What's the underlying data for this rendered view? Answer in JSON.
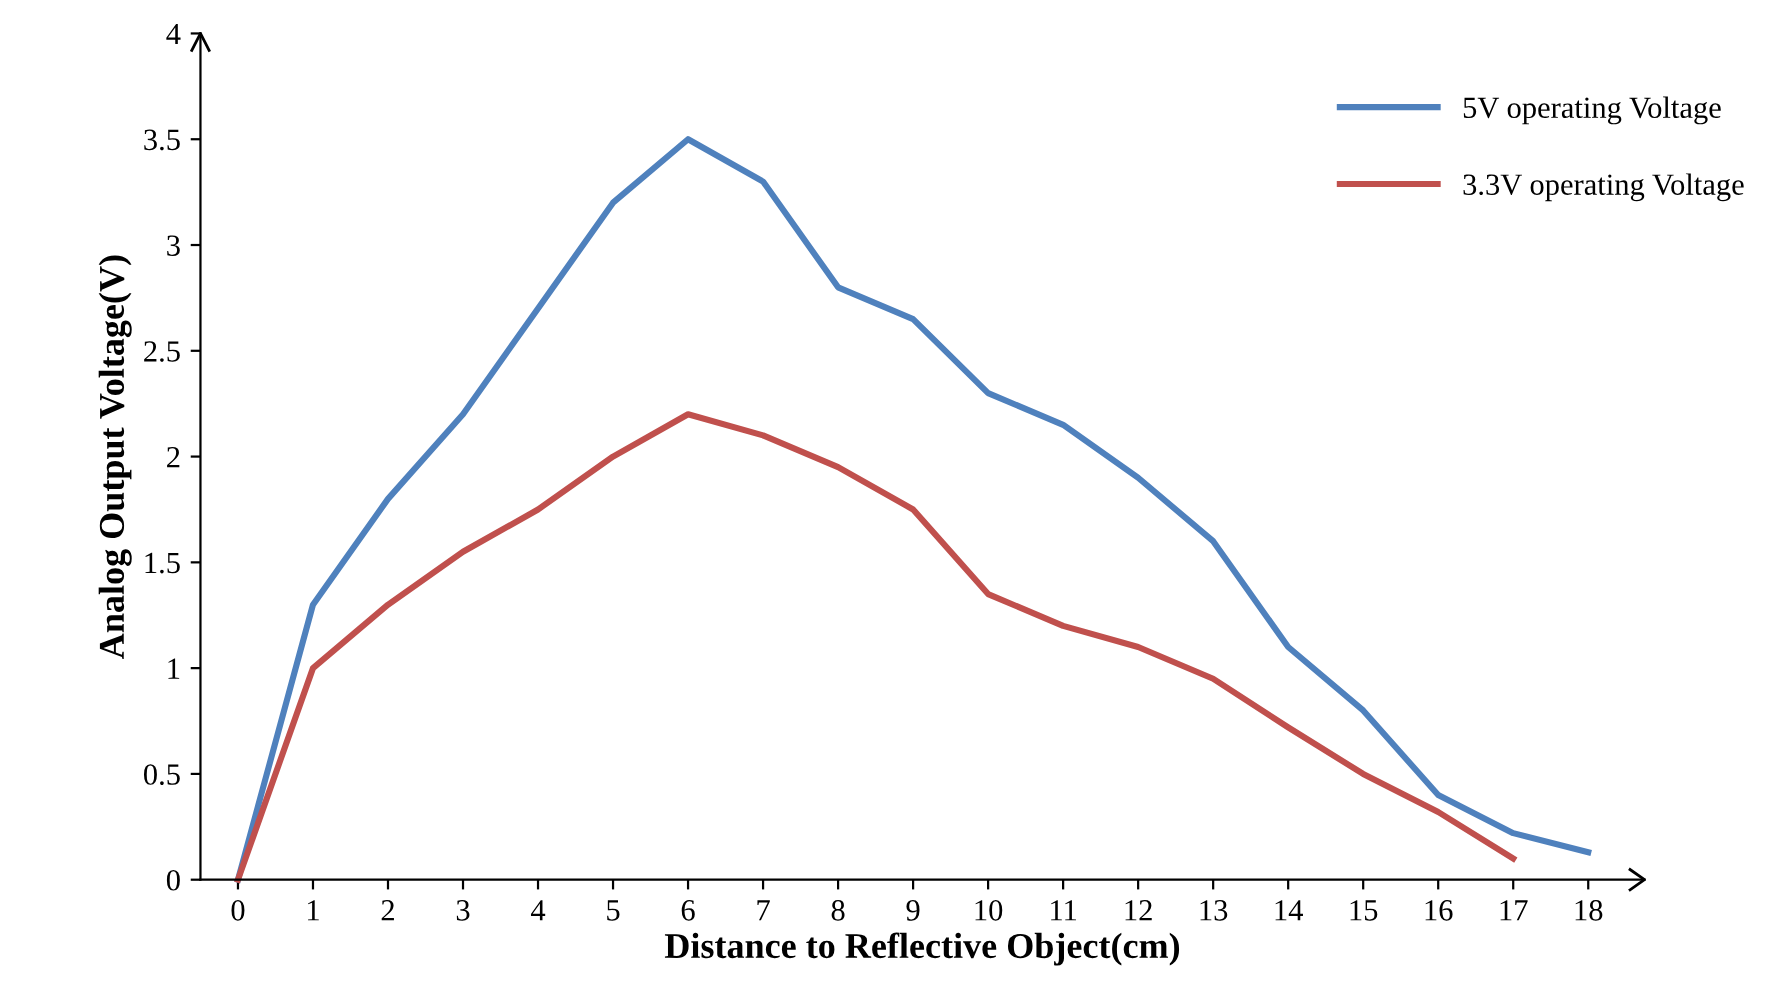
{
  "chart_data": {
    "type": "line",
    "xlabel": "Distance to Reflective Object(cm)",
    "ylabel": "Analog Output Voltage(V)",
    "xlim": [
      -0.5,
      18.75
    ],
    "xticks": [
      0,
      1,
      2,
      3,
      4,
      5,
      6,
      7,
      8,
      9,
      10,
      11,
      12,
      13,
      14,
      15,
      16,
      17,
      18
    ],
    "ylim": [
      0,
      4
    ],
    "yticks": [
      0,
      0.5,
      1,
      1.5,
      2,
      2.5,
      3,
      3.5,
      4
    ],
    "grid": false,
    "legend": "top right",
    "marker": "none",
    "line_style": "solid",
    "series": [
      {
        "name": "5V operating Voltage",
        "color": "#4f81bd",
        "x": [
          0,
          1,
          2,
          3,
          4,
          5,
          6,
          7,
          8,
          9,
          10,
          11,
          12,
          13,
          14,
          15,
          16,
          17,
          18
        ],
        "values": [
          0,
          1.3,
          1.8,
          2.2,
          2.7,
          3.2,
          3.5,
          3.3,
          2.8,
          2.65,
          2.3,
          2.15,
          1.9,
          1.6,
          1.1,
          0.8,
          0.4,
          0.22,
          0.13
        ]
      },
      {
        "name": "3.3V operating Voltage",
        "color": "#c0504d",
        "x": [
          0,
          1,
          2,
          3,
          4,
          5,
          6,
          7,
          8,
          9,
          10,
          11,
          12,
          13,
          14,
          15,
          16,
          17
        ],
        "values": [
          0,
          1.0,
          1.3,
          1.55,
          1.75,
          2.0,
          2.2,
          2.1,
          1.95,
          1.75,
          1.35,
          1.2,
          1.1,
          0.95,
          0.72,
          0.5,
          0.32,
          0.1
        ]
      }
    ]
  }
}
